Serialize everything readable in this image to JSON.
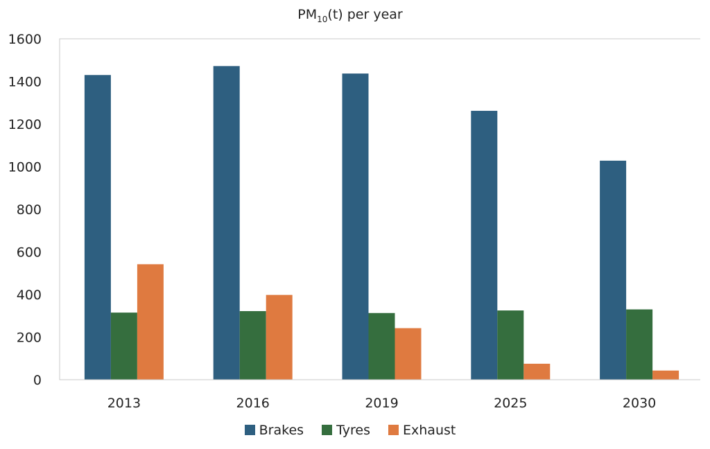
{
  "chart_data": {
    "type": "bar",
    "title_main": "PM",
    "title_sub": "10",
    "title_rest": "(t) per year",
    "categories": [
      "2013",
      "2016",
      "2019",
      "2025",
      "2030"
    ],
    "series": [
      {
        "name": "Brakes",
        "values": [
          1430,
          1472,
          1437,
          1262,
          1028
        ],
        "color": "#2E5F80"
      },
      {
        "name": "Tyres",
        "values": [
          315,
          322,
          313,
          325,
          330
        ],
        "color": "#356E3E"
      },
      {
        "name": "Exhaust",
        "values": [
          542,
          398,
          242,
          75,
          43
        ],
        "color": "#DF7A40"
      }
    ],
    "ylim": [
      0,
      1600
    ],
    "yticks": [
      "0",
      "200",
      "400",
      "600",
      "800",
      "1000",
      "1200",
      "1400",
      "1600"
    ],
    "grid": false,
    "legend_position": "bottom"
  }
}
